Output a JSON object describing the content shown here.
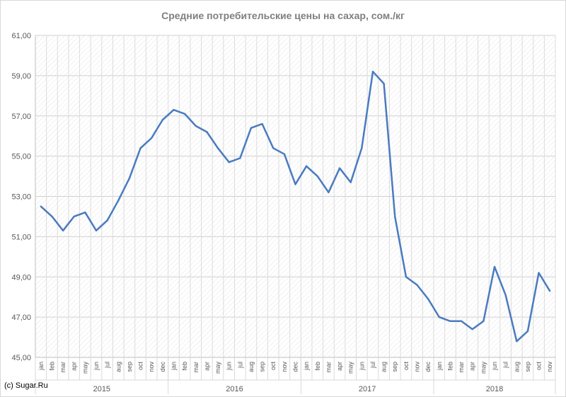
{
  "chart_data": {
    "type": "line",
    "title": "Средние потребительские цены на сахар, сом./кг",
    "ylim": [
      45,
      61
    ],
    "yticks": [
      "45,00",
      "47,00",
      "49,00",
      "51,00",
      "53,00",
      "55,00",
      "57,00",
      "59,00",
      "61,00"
    ],
    "grid": "hatched",
    "legend": "none",
    "color": "#4a7bbf",
    "years": [
      "2015",
      "2016",
      "2017",
      "2018"
    ],
    "months": [
      "jan",
      "feb",
      "mar",
      "apr",
      "may",
      "jun",
      "jul",
      "aug",
      "sep",
      "oct",
      "nov",
      "dec",
      "jan",
      "feb",
      "mar",
      "apr",
      "may",
      "jun",
      "jul",
      "aug",
      "sep",
      "oct",
      "nov",
      "dec",
      "jan",
      "feb",
      "mar",
      "apr",
      "may",
      "jun",
      "jul",
      "aug",
      "sep",
      "oct",
      "nov",
      "dec",
      "jan",
      "feb",
      "mar",
      "apr",
      "may",
      "jun",
      "jul",
      "aug",
      "sep",
      "oct",
      "nov"
    ],
    "values": [
      52.5,
      52.0,
      51.3,
      52.0,
      52.2,
      51.3,
      51.8,
      52.8,
      53.9,
      55.4,
      55.9,
      56.8,
      57.3,
      57.1,
      56.5,
      56.2,
      55.4,
      54.7,
      54.9,
      56.4,
      56.6,
      55.4,
      55.1,
      53.6,
      54.5,
      54.0,
      53.2,
      54.4,
      53.7,
      55.4,
      59.2,
      58.6,
      52.0,
      49.0,
      48.6,
      47.9,
      47.0,
      46.8,
      46.8,
      46.4,
      46.8,
      49.5,
      48.1,
      45.8,
      46.3,
      49.2,
      48.3
    ]
  },
  "footer": {
    "copyright": "(c) Sugar.Ru"
  }
}
